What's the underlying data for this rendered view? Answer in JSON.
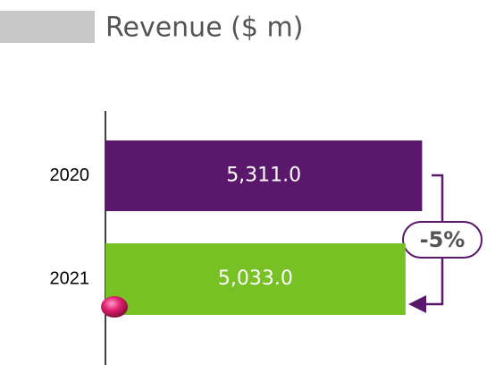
{
  "chart_data": {
    "type": "bar",
    "orientation": "horizontal",
    "title": "Revenue ($ m)",
    "categories": [
      "2020",
      "2021"
    ],
    "values": [
      5311.0,
      5033.0
    ],
    "value_labels": [
      "5,311.0",
      "5,033.0"
    ],
    "colors": [
      "#5a186c",
      "#77c125"
    ],
    "xlim": [
      0,
      5500
    ],
    "annotation": "-5%"
  }
}
